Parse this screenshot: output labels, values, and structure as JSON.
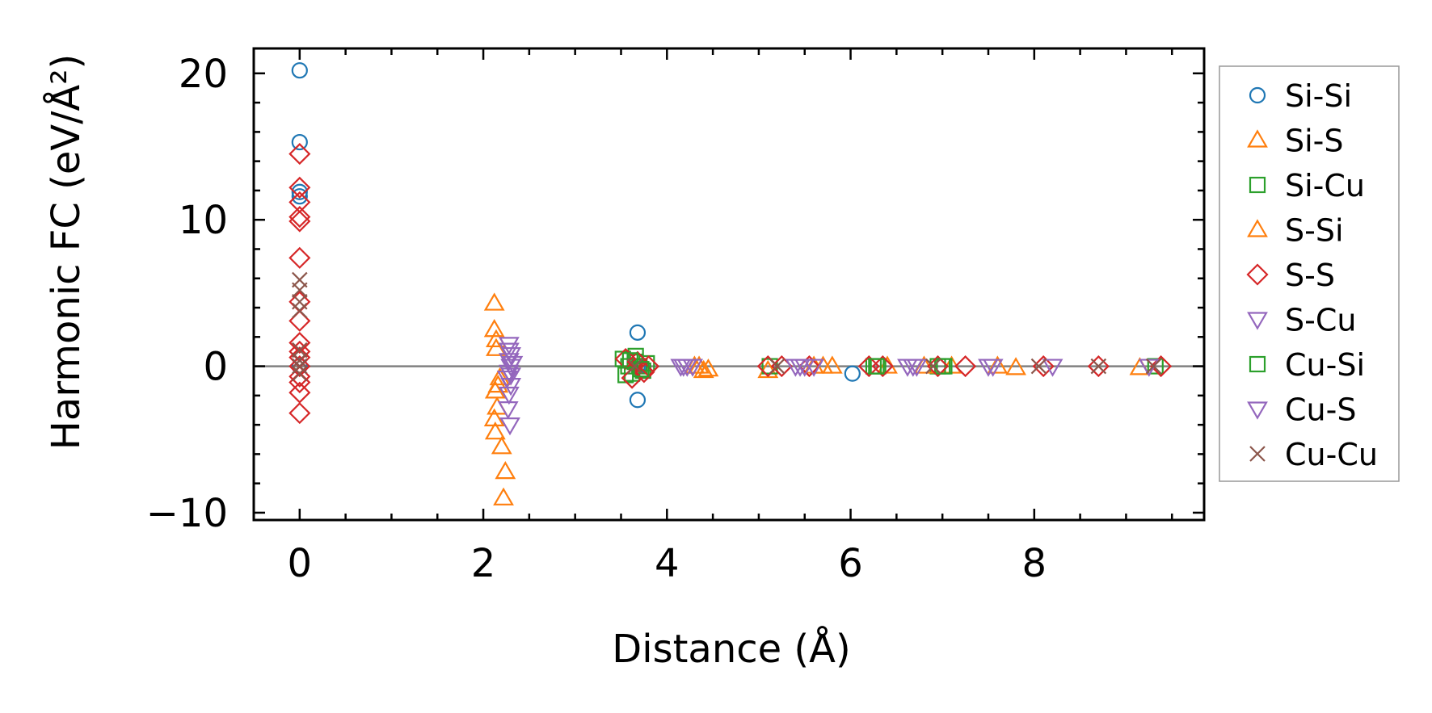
{
  "chart_data": {
    "type": "scatter",
    "xlabel": "Distance (Å)",
    "ylabel": "Harmonic FC (eV/Å²)",
    "xlim": [
      -0.5,
      9.85
    ],
    "ylim": [
      -10.5,
      21.7
    ],
    "xticks": [
      0,
      2,
      4,
      6,
      8
    ],
    "yticks": [
      -10,
      0,
      10,
      20
    ],
    "x_tick_labels": [
      "0",
      "2",
      "4",
      "6",
      "8"
    ],
    "y_tick_labels": [
      "−10",
      "0",
      "10",
      "20"
    ],
    "reference_line_y": 0,
    "legend_position": "outside-right",
    "series": [
      {
        "name": "Si-Si",
        "marker": "circle",
        "color": "#1f77b4",
        "x": [
          0,
          0,
          0,
          0,
          0,
          3.68,
          3.68,
          3.68,
          3.7,
          6.02
        ],
        "y": [
          20.2,
          15.3,
          11.9,
          11.6,
          0,
          2.3,
          -2.3,
          0,
          0,
          -0.5
        ]
      },
      {
        "name": "Si-S",
        "marker": "triangle-up",
        "color": "#ff7f0e",
        "x": [
          2.12,
          2.12,
          2.14,
          2.14,
          2.16,
          2.13,
          2.15,
          2.12,
          2.13,
          2.2,
          2.24,
          2.22,
          2.18,
          4.35,
          4.4,
          5.1,
          5.6,
          5.8,
          6.4,
          7.1,
          7.8,
          9.15
        ],
        "y": [
          4.3,
          2.5,
          1.8,
          1.2,
          -1.3,
          -1.7,
          -2.8,
          -3.6,
          -4.5,
          -5.5,
          -7.2,
          -9.0,
          -0.8,
          0,
          -0.3,
          -0.3,
          0,
          0,
          0,
          0,
          -0.1,
          -0.1
        ]
      },
      {
        "name": "Si-Cu",
        "marker": "square",
        "color": "#2ca02c",
        "x": [
          3.52,
          3.58,
          3.62,
          3.66,
          3.7,
          3.74,
          3.78,
          3.55,
          3.65,
          5.12,
          6.25,
          6.3,
          6.95,
          7.0,
          9.32
        ],
        "y": [
          0.5,
          0,
          -0.5,
          0.7,
          0,
          -0.3,
          0.2,
          -0.6,
          0.3,
          0,
          0,
          0,
          0,
          0,
          0
        ]
      },
      {
        "name": "S-Si",
        "marker": "triangle-up",
        "color": "#ff7f0e",
        "x": [
          4.3,
          4.45,
          5.7,
          6.8,
          7.6
        ],
        "y": [
          0,
          -0.2,
          0,
          0,
          0
        ]
      },
      {
        "name": "S-S",
        "marker": "diamond",
        "color": "#d62728",
        "x": [
          0,
          0,
          0,
          0,
          0,
          0,
          0,
          0,
          0,
          0,
          0,
          0,
          0,
          0,
          0,
          0,
          3.55,
          3.62,
          3.68,
          3.75,
          3.8,
          5.1,
          5.25,
          5.55,
          6.2,
          6.35,
          6.95,
          7.25,
          8.1,
          8.7,
          9.38
        ],
        "y": [
          14.5,
          12.2,
          11.2,
          10.2,
          9.9,
          7.4,
          4.4,
          3.1,
          1.6,
          1.0,
          0.6,
          -0.7,
          -1.1,
          -1.8,
          -3.2,
          0,
          0.5,
          -0.8,
          0.3,
          -0.4,
          0,
          0,
          0,
          0,
          0,
          0,
          0,
          0,
          0,
          0,
          0
        ]
      },
      {
        "name": "S-Cu",
        "marker": "triangle-down",
        "color": "#9467bd",
        "x": [
          2.28,
          2.28,
          2.3,
          2.28,
          2.3,
          2.28,
          2.26,
          2.3,
          2.28,
          2.27,
          2.29,
          4.15,
          4.22,
          4.28,
          5.4,
          5.5,
          5.6,
          6.62,
          6.68,
          7.5,
          8.2,
          9.25
        ],
        "y": [
          1.5,
          1.1,
          0.8,
          0.4,
          0,
          -0.4,
          -0.8,
          -1.3,
          -1.9,
          -2.9,
          -4.0,
          0,
          0,
          0,
          0,
          0,
          0,
          0,
          0,
          0,
          0,
          0
        ]
      },
      {
        "name": "Cu-Si",
        "marker": "square",
        "color": "#2ca02c",
        "x": [
          3.6,
          3.72,
          6.28,
          7.02
        ],
        "y": [
          0.4,
          -0.2,
          0,
          0
        ]
      },
      {
        "name": "Cu-S",
        "marker": "triangle-down",
        "color": "#9467bd",
        "x": [
          2.32,
          2.3,
          4.18,
          5.45,
          6.72,
          7.55
        ],
        "y": [
          0.2,
          -0.6,
          0,
          0,
          0,
          0
        ]
      },
      {
        "name": "Cu-Cu",
        "marker": "x",
        "color": "#8c564b",
        "x": [
          0,
          0,
          0,
          0,
          0,
          0,
          0,
          0,
          3.65,
          5.2,
          6.9,
          8.05,
          8.7,
          9.3
        ],
        "y": [
          5.9,
          5.2,
          4.4,
          3.8,
          1.1,
          0.4,
          0,
          -0.5,
          0,
          0,
          0,
          0,
          0,
          0
        ]
      }
    ]
  }
}
